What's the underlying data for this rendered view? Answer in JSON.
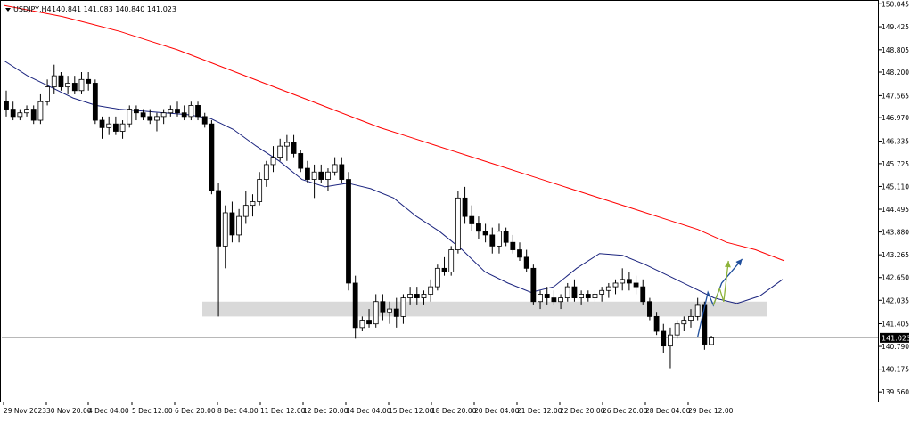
{
  "header": {
    "symbol": "USDJPY,H4",
    "ohlc": "140.841 141.083 140.840 141.023"
  },
  "current_price_label": "141.023",
  "colors": {
    "bull_fill": "#ffffff",
    "bear_fill": "#000000",
    "candle_outline": "#000000",
    "ma_fast": "#1a237e",
    "ma_slow": "#ff0000",
    "forecast_blue": "#1f4e9c",
    "forecast_green": "#8db33a",
    "support_zone": "#d9d9d9",
    "axis": "#000000",
    "current_price_line": "#a0a0a0"
  },
  "chart_data": {
    "type": "candlestick",
    "ylim": [
      139.3,
      150.1
    ],
    "y_ticks": [
      "150.045",
      "149.425",
      "148.805",
      "148.200",
      "147.565",
      "146.970",
      "146.335",
      "145.725",
      "145.110",
      "144.495",
      "143.880",
      "143.265",
      "142.650",
      "142.035",
      "141.405",
      "140.790",
      "140.175",
      "139.560"
    ],
    "x_tick_labels": [
      "29 Nov 2023",
      "30 Nov 20:00",
      "4 Dec 04:00",
      "5 Dec 12:00",
      "6 Dec 20:00",
      "8 Dec 04:00",
      "11 Dec 12:00",
      "12 Dec 20:00",
      "14 Dec 04:00",
      "15 Dec 12:00",
      "18 Dec 20:00",
      "20 Dec 04:00",
      "21 Dec 12:00",
      "22 Dec 20:00",
      "26 Dec 20:00",
      "28 Dec 04:00",
      "29 Dec 12:00"
    ],
    "candles": [
      [
        147.4,
        147.7,
        147.0,
        147.2
      ],
      [
        147.2,
        147.4,
        146.9,
        147.0
      ],
      [
        147.0,
        147.2,
        146.9,
        147.1
      ],
      [
        147.1,
        147.3,
        147.0,
        147.2
      ],
      [
        147.2,
        147.3,
        146.8,
        146.9
      ],
      [
        146.9,
        147.6,
        146.8,
        147.4
      ],
      [
        147.4,
        148.0,
        147.3,
        147.8
      ],
      [
        147.8,
        148.4,
        147.6,
        148.1
      ],
      [
        148.1,
        148.2,
        147.7,
        147.8
      ],
      [
        147.8,
        148.1,
        147.6,
        147.9
      ],
      [
        147.9,
        148.1,
        147.6,
        147.7
      ],
      [
        147.7,
        148.2,
        147.6,
        148.0
      ],
      [
        148.0,
        148.2,
        147.7,
        147.9
      ],
      [
        147.9,
        148.0,
        146.8,
        146.9
      ],
      [
        146.9,
        147.0,
        146.4,
        146.7
      ],
      [
        146.7,
        147.0,
        146.5,
        146.8
      ],
      [
        146.8,
        147.0,
        146.5,
        146.6
      ],
      [
        146.6,
        146.9,
        146.4,
        146.8
      ],
      [
        146.8,
        147.3,
        146.7,
        147.2
      ],
      [
        147.2,
        147.3,
        146.9,
        147.1
      ],
      [
        147.1,
        147.2,
        146.9,
        147.0
      ],
      [
        147.0,
        147.2,
        146.8,
        146.9
      ],
      [
        146.9,
        147.1,
        146.6,
        147.0
      ],
      [
        147.0,
        147.2,
        146.8,
        147.1
      ],
      [
        147.1,
        147.3,
        147.0,
        147.2
      ],
      [
        147.2,
        147.4,
        147.0,
        147.1
      ],
      [
        147.1,
        147.3,
        146.9,
        147.0
      ],
      [
        147.0,
        147.4,
        146.9,
        147.3
      ],
      [
        147.3,
        147.4,
        146.9,
        147.0
      ],
      [
        147.0,
        147.1,
        146.7,
        146.8
      ],
      [
        146.8,
        146.9,
        144.9,
        145.0
      ],
      [
        145.0,
        145.2,
        141.6,
        143.5
      ],
      [
        143.5,
        144.6,
        142.9,
        144.4
      ],
      [
        144.4,
        144.7,
        143.6,
        143.8
      ],
      [
        143.8,
        144.5,
        143.6,
        144.3
      ],
      [
        144.3,
        145.0,
        144.1,
        144.6
      ],
      [
        144.6,
        144.9,
        144.3,
        144.7
      ],
      [
        144.7,
        145.5,
        144.6,
        145.3
      ],
      [
        145.3,
        145.8,
        145.1,
        145.7
      ],
      [
        145.7,
        146.2,
        145.5,
        145.9
      ],
      [
        145.9,
        146.4,
        145.8,
        146.2
      ],
      [
        146.2,
        146.5,
        145.8,
        146.3
      ],
      [
        146.3,
        146.5,
        145.9,
        146.0
      ],
      [
        146.0,
        146.1,
        145.5,
        145.6
      ],
      [
        145.6,
        145.8,
        145.2,
        145.3
      ],
      [
        145.3,
        145.7,
        144.8,
        145.5
      ],
      [
        145.5,
        145.7,
        145.2,
        145.3
      ],
      [
        145.3,
        145.6,
        145.0,
        145.5
      ],
      [
        145.5,
        145.9,
        145.4,
        145.7
      ],
      [
        145.7,
        145.9,
        145.2,
        145.3
      ],
      [
        145.3,
        145.5,
        142.3,
        142.5
      ],
      [
        142.5,
        142.7,
        141.0,
        141.3
      ],
      [
        141.3,
        141.6,
        141.2,
        141.5
      ],
      [
        141.5,
        141.8,
        141.3,
        141.4
      ],
      [
        141.4,
        142.2,
        141.3,
        142.0
      ],
      [
        142.0,
        142.2,
        141.5,
        141.7
      ],
      [
        141.7,
        142.0,
        141.4,
        141.8
      ],
      [
        141.8,
        142.1,
        141.3,
        141.6
      ],
      [
        141.6,
        142.2,
        141.4,
        142.1
      ],
      [
        142.1,
        142.4,
        141.9,
        142.2
      ],
      [
        142.2,
        142.4,
        141.9,
        142.1
      ],
      [
        142.1,
        142.3,
        141.9,
        142.2
      ],
      [
        142.2,
        142.6,
        142.0,
        142.4
      ],
      [
        142.4,
        143.0,
        142.3,
        142.9
      ],
      [
        142.9,
        143.2,
        142.7,
        142.8
      ],
      [
        142.8,
        143.5,
        142.7,
        143.4
      ],
      [
        143.4,
        145.0,
        143.3,
        144.8
      ],
      [
        144.8,
        145.1,
        144.1,
        144.3
      ],
      [
        144.3,
        144.6,
        143.9,
        144.1
      ],
      [
        144.1,
        144.3,
        143.7,
        143.9
      ],
      [
        143.9,
        144.1,
        143.6,
        143.8
      ],
      [
        143.8,
        144.0,
        143.3,
        143.5
      ],
      [
        143.5,
        144.1,
        143.3,
        143.9
      ],
      [
        143.9,
        144.0,
        143.5,
        143.6
      ],
      [
        143.6,
        143.8,
        143.3,
        143.4
      ],
      [
        143.4,
        143.6,
        143.1,
        143.2
      ],
      [
        143.2,
        143.4,
        142.8,
        142.9
      ],
      [
        142.9,
        143.0,
        141.9,
        142.0
      ],
      [
        142.0,
        142.3,
        141.8,
        142.2
      ],
      [
        142.2,
        142.4,
        141.9,
        142.1
      ],
      [
        142.1,
        142.3,
        141.9,
        142.0
      ],
      [
        142.0,
        142.2,
        141.8,
        142.1
      ],
      [
        142.1,
        142.5,
        142.0,
        142.4
      ],
      [
        142.4,
        142.6,
        142.0,
        142.1
      ],
      [
        142.1,
        142.3,
        141.9,
        142.2
      ],
      [
        142.2,
        142.3,
        142.0,
        142.1
      ],
      [
        142.1,
        142.3,
        142.0,
        142.2
      ],
      [
        142.2,
        142.4,
        142.0,
        142.3
      ],
      [
        142.3,
        142.5,
        142.1,
        142.4
      ],
      [
        142.4,
        142.6,
        142.2,
        142.5
      ],
      [
        142.5,
        142.9,
        142.3,
        142.6
      ],
      [
        142.6,
        142.8,
        142.3,
        142.5
      ],
      [
        142.5,
        142.7,
        142.2,
        142.4
      ],
      [
        142.4,
        142.6,
        141.9,
        142.0
      ],
      [
        142.0,
        142.1,
        141.5,
        141.6
      ],
      [
        141.6,
        141.7,
        141.1,
        141.2
      ],
      [
        141.2,
        141.4,
        140.6,
        140.8
      ],
      [
        140.8,
        141.3,
        140.2,
        141.1
      ],
      [
        141.1,
        141.5,
        141.0,
        141.4
      ],
      [
        141.4,
        141.6,
        141.2,
        141.5
      ],
      [
        141.5,
        141.8,
        141.3,
        141.6
      ],
      [
        141.6,
        142.1,
        141.5,
        141.9
      ],
      [
        141.9,
        142.0,
        140.7,
        140.85
      ],
      [
        140.84,
        141.08,
        140.84,
        141.02
      ]
    ],
    "series": [
      {
        "values": [
          148.5,
          148.1,
          147.8,
          147.5,
          147.3,
          147.2,
          147.15,
          147.1,
          147.05,
          146.95,
          146.65,
          146.2,
          145.8,
          145.3,
          145.1,
          145.2,
          145.05,
          144.8,
          144.3,
          143.9,
          143.4,
          142.8,
          142.5,
          142.25,
          142.4,
          142.9,
          143.3,
          143.25,
          143.0,
          142.7,
          142.4,
          142.1,
          141.95,
          142.15,
          142.6
        ]
      },
      {
        "values": [
          150.0,
          149.85,
          149.7,
          149.5,
          149.3,
          149.05,
          148.8,
          148.5,
          148.2,
          147.9,
          147.6,
          147.3,
          147.0,
          146.7,
          146.45,
          146.2,
          145.95,
          145.7,
          145.45,
          145.2,
          144.95,
          144.7,
          144.45,
          144.2,
          143.95,
          143.6,
          143.4,
          143.1
        ]
      }
    ],
    "support_zone": [
      141.6,
      142.0
    ],
    "current_price": 141.023,
    "forecast_paths": [
      [
        [
          101,
          141.05
        ],
        [
          102.5,
          142.25
        ],
        [
          103.3,
          141.9
        ],
        [
          104.5,
          142.5
        ],
        [
          107.5,
          143.15
        ]
      ],
      [
        [
          103.3,
          141.9
        ],
        [
          104.2,
          142.35
        ],
        [
          104.8,
          142.0
        ],
        [
          105.5,
          143.1
        ]
      ]
    ]
  }
}
